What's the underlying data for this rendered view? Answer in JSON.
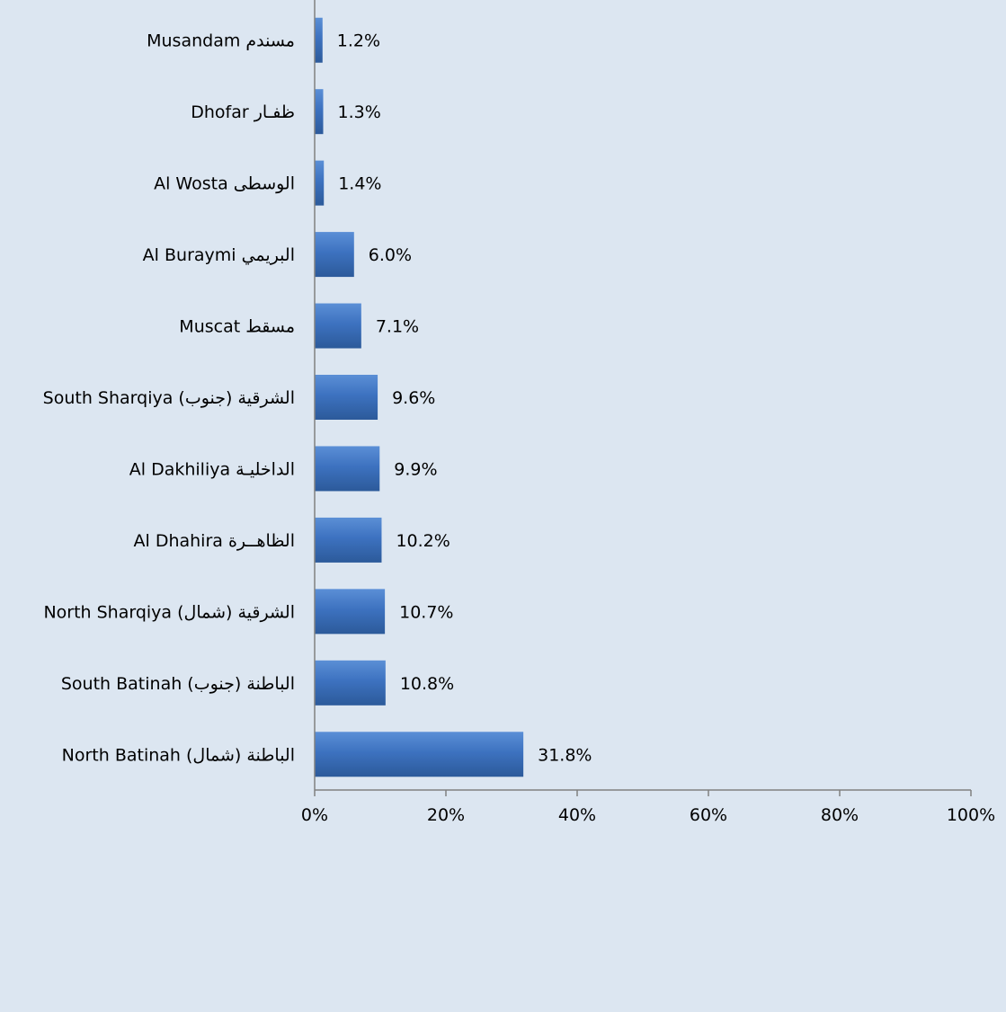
{
  "chart_data": {
    "type": "bar",
    "orientation": "horizontal",
    "categories": [
      "Musandam  مسندم",
      "Dhofar  ظفـار",
      "Al Wosta  الوسطى",
      "Al Buraymi  البريمي",
      "Muscat  مسقط",
      "South Sharqiya  (جنوب) الشرقية",
      "Al Dakhiliya  الداخليـة",
      "Al Dhahira  الظاهــرة",
      "North Sharqiya  (شمال) الشرقية",
      "South Batinah  (جنوب) الباطنة",
      "North Batinah  (شمال) الباطنة"
    ],
    "values": [
      1.2,
      1.3,
      1.4,
      6.0,
      7.1,
      9.6,
      9.9,
      10.2,
      10.7,
      10.8,
      31.8
    ],
    "value_labels": [
      "1.2%",
      "1.3%",
      "1.4%",
      "6.0%",
      "7.1%",
      "9.6%",
      "9.9%",
      "10.2%",
      "10.7%",
      "10.8%",
      "31.8%"
    ],
    "xlim": [
      0,
      100
    ],
    "xticks": [
      0,
      20,
      40,
      60,
      80,
      100
    ],
    "xtick_labels": [
      "0%",
      "20%",
      "40%",
      "60%",
      "80%",
      "100%"
    ],
    "title": "",
    "xlabel": "",
    "ylabel": "",
    "grid": false,
    "legend": "none",
    "colors": {
      "background": "#dce6f1",
      "bar_top": "#5b8fd6",
      "bar_mid": "#3d72c0",
      "bar_bottom": "#2c5a9a",
      "axis": "#808080",
      "text": "#000000"
    }
  }
}
